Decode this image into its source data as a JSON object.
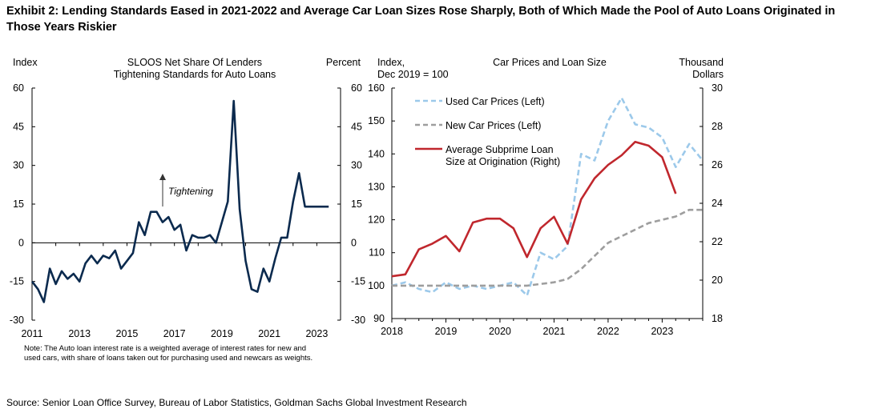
{
  "exhibit": {
    "title": "Exhibit 2: Lending Standards Eased in 2021-2022 and Average Car Loan Sizes Rose Sharply, Both of Which Made the Pool of Auto Loans Originated in Those Years Riskier",
    "source": "Source: Senior Loan Office Survey, Bureau of Labor Statistics, Goldman Sachs Global Investment Research"
  },
  "chart_data": [
    {
      "type": "line",
      "title_lines": [
        "SLOOS Net Share Of Lenders",
        "Tightening Standards for Auto Loans"
      ],
      "ylabel_left": "Index",
      "ylabel_right": "Percent",
      "ylim": [
        -30,
        60
      ],
      "yticks": [
        -30,
        -15,
        0,
        15,
        30,
        45,
        60
      ],
      "xlim": [
        2011,
        2024
      ],
      "xticks": [
        2011,
        2013,
        2015,
        2017,
        2019,
        2021,
        2023
      ],
      "grid": false,
      "annotation": "Tightening",
      "note_lines": [
        "Note: The Auto loan interest rate is a weighted average of interest rates for new and",
        "used cars, with share of loans taken out for purchasing used and newcars as weights."
      ],
      "series": [
        {
          "color": "#0b2a4e",
          "x": [
            2011.0,
            2011.25,
            2011.5,
            2011.75,
            2012.0,
            2012.25,
            2012.5,
            2012.75,
            2013.0,
            2013.25,
            2013.5,
            2013.75,
            2014.0,
            2014.25,
            2014.5,
            2014.75,
            2015.0,
            2015.25,
            2015.5,
            2015.75,
            2016.0,
            2016.25,
            2016.5,
            2016.75,
            2017.0,
            2017.25,
            2017.5,
            2017.75,
            2018.0,
            2018.25,
            2018.5,
            2018.75,
            2019.0,
            2019.25,
            2019.5,
            2019.75,
            2020.0,
            2020.25,
            2020.5,
            2020.75,
            2021.0,
            2021.25,
            2021.5,
            2021.75,
            2022.0,
            2022.25,
            2022.5,
            2022.75,
            2023.0,
            2023.25,
            2023.5
          ],
          "y": [
            -15,
            -18,
            -23,
            -10,
            -16,
            -11,
            -14,
            -12,
            -15,
            -8,
            -5,
            -8,
            -5,
            -6,
            -3,
            -10,
            -7,
            -4,
            8,
            3,
            12,
            12,
            8,
            10,
            5,
            7,
            -3,
            3,
            2,
            2,
            3,
            0,
            8,
            16,
            55,
            13,
            -7,
            -18,
            -19,
            -10,
            -15,
            -6,
            2,
            2,
            16,
            27,
            14,
            14,
            14,
            14,
            14
          ]
        }
      ]
    },
    {
      "type": "line",
      "title": "Car Prices and Loan Size",
      "ylabel_left_lines": [
        "Index,",
        "Dec 2019 = 100"
      ],
      "ylabel_right_lines": [
        "Thousand",
        "Dollars"
      ],
      "ylim_left": [
        90,
        160
      ],
      "yticks_left": [
        90,
        100,
        110,
        120,
        130,
        140,
        150,
        160
      ],
      "ylim_right": [
        18,
        30
      ],
      "yticks_right": [
        18,
        20,
        22,
        24,
        26,
        28,
        30
      ],
      "xlim": [
        2018,
        2023.75
      ],
      "xticks": [
        2018,
        2019,
        2020,
        2021,
        2022,
        2023
      ],
      "grid": false,
      "legend": "top-left",
      "series": [
        {
          "name": "Used Car Prices (Left)",
          "axis": "left",
          "color": "#9cc9ea",
          "dash": "dashed",
          "x": [
            2018.0,
            2018.25,
            2018.5,
            2018.75,
            2019.0,
            2019.25,
            2019.5,
            2019.75,
            2020.0,
            2020.25,
            2020.5,
            2020.75,
            2021.0,
            2021.25,
            2021.5,
            2021.75,
            2022.0,
            2022.25,
            2022.5,
            2022.75,
            2023.0,
            2023.25,
            2023.5,
            2023.75
          ],
          "y": [
            100,
            101,
            99,
            98,
            101,
            99,
            100,
            99,
            100,
            101,
            97,
            110,
            108,
            112,
            140,
            138,
            150,
            157,
            149,
            148,
            145,
            136,
            143,
            138
          ]
        },
        {
          "name": "New Car Prices (Left)",
          "axis": "left",
          "color": "#9e9e9e",
          "dash": "dashed",
          "x": [
            2018.0,
            2018.25,
            2018.5,
            2018.75,
            2019.0,
            2019.25,
            2019.5,
            2019.75,
            2020.0,
            2020.25,
            2020.5,
            2020.75,
            2021.0,
            2021.25,
            2021.5,
            2021.75,
            2022.0,
            2022.25,
            2022.5,
            2022.75,
            2023.0,
            2023.25,
            2023.5,
            2023.75
          ],
          "y": [
            100,
            100,
            100,
            100,
            100,
            100,
            100,
            100,
            100,
            100,
            100,
            100.5,
            101,
            102,
            105,
            109,
            113,
            115,
            117,
            119,
            120,
            121,
            123,
            123
          ]
        },
        {
          "name": "Average Subprime Loan Size at Origination (Right)",
          "axis": "right",
          "color": "#c0272d",
          "dash": "solid",
          "x": [
            2018.0,
            2018.25,
            2018.5,
            2018.75,
            2019.0,
            2019.25,
            2019.5,
            2019.75,
            2020.0,
            2020.25,
            2020.5,
            2020.75,
            2021.0,
            2021.25,
            2021.5,
            2021.75,
            2022.0,
            2022.25,
            2022.5,
            2022.75,
            2023.0,
            2023.25
          ],
          "y": [
            20.2,
            20.3,
            21.6,
            21.9,
            22.3,
            21.5,
            23.0,
            23.2,
            23.2,
            22.7,
            21.2,
            22.7,
            23.3,
            21.9,
            24.2,
            25.3,
            26.0,
            26.5,
            27.2,
            27.0,
            26.4,
            24.5
          ]
        }
      ]
    }
  ]
}
